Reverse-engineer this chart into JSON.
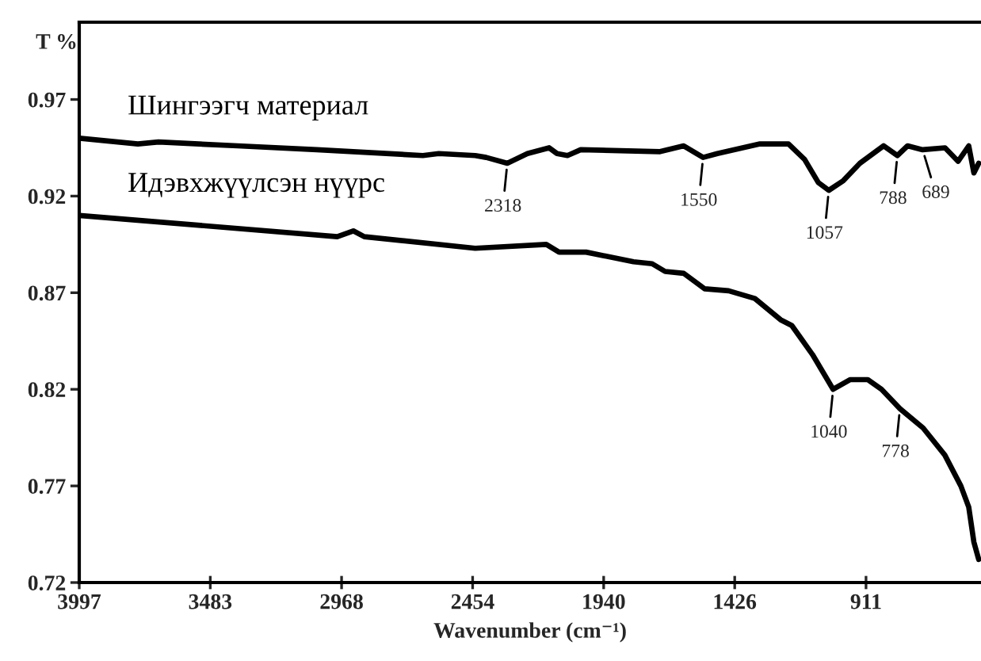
{
  "chart_data": {
    "type": "line",
    "xlabel": "Wavenumber (cm⁻¹)",
    "ylabel": "T %",
    "xlim": [
      3997,
      460
    ],
    "xticks": [
      3997,
      3483,
      2968,
      2454,
      1940,
      1426,
      911
    ],
    "ylim": [
      0.72,
      1.01
    ],
    "yticks": [
      0.72,
      0.77,
      0.82,
      0.87,
      0.92,
      0.97
    ],
    "grid": false,
    "legend": false,
    "marker": "none",
    "line_style": "solid",
    "series": [
      {
        "name": "Шингээгч материал",
        "color": "#000000",
        "x": [
          3997,
          3767,
          3686,
          3376,
          3065,
          2649,
          2587,
          2444,
          2401,
          2318,
          2239,
          2154,
          2123,
          2082,
          2030,
          1719,
          1626,
          1550,
          1494,
          1327,
          1215,
          1152,
          1098,
          1057,
          1000,
          935,
          842,
          788,
          748,
          689,
          601,
          550,
          508,
          488,
          469
        ],
        "values": [
          0.95,
          0.947,
          0.948,
          0.946,
          0.944,
          0.941,
          0.942,
          0.941,
          0.94,
          0.937,
          0.942,
          0.945,
          0.942,
          0.941,
          0.944,
          0.943,
          0.946,
          0.94,
          0.942,
          0.947,
          0.947,
          0.939,
          0.927,
          0.923,
          0.928,
          0.937,
          0.946,
          0.941,
          0.946,
          0.944,
          0.945,
          0.938,
          0.946,
          0.932,
          0.937
        ]
      },
      {
        "name": "Идэвхжүүлсэн нүүрс",
        "color": "#000000",
        "x": [
          3997,
          2985,
          2922,
          2879,
          2444,
          2165,
          2115,
          2009,
          1823,
          1750,
          1699,
          1626,
          1544,
          1450,
          1347,
          1246,
          1202,
          1121,
          1040,
          974,
          904,
          850,
          778,
          687,
          602,
          539,
          508,
          488,
          469
        ],
        "values": [
          0.91,
          0.899,
          0.902,
          0.899,
          0.893,
          0.895,
          0.891,
          0.891,
          0.886,
          0.885,
          0.881,
          0.88,
          0.872,
          0.871,
          0.867,
          0.856,
          0.853,
          0.838,
          0.82,
          0.825,
          0.825,
          0.82,
          0.81,
          0.8,
          0.786,
          0.77,
          0.759,
          0.741,
          0.732
        ]
      }
    ],
    "annotations": [
      {
        "text": "2318",
        "x": 2318,
        "y": 0.937
      },
      {
        "text": "1550",
        "x": 1550,
        "y": 0.94
      },
      {
        "text": "1057",
        "x": 1057,
        "y": 0.923
      },
      {
        "text": "788",
        "x": 788,
        "y": 0.941
      },
      {
        "text": "689",
        "x": 689,
        "y": 0.944
      },
      {
        "text": "1040",
        "x": 1040,
        "y": 0.82
      },
      {
        "text": "778",
        "x": 778,
        "y": 0.81
      }
    ]
  }
}
